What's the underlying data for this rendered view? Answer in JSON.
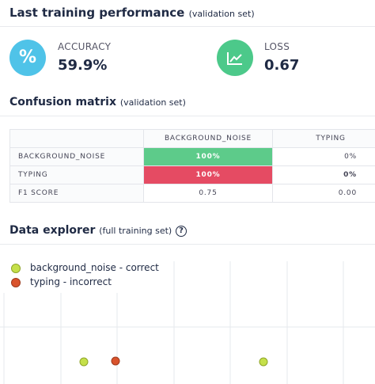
{
  "header": {
    "title": "Last training performance",
    "subtitle": "(validation set)"
  },
  "metrics": [
    {
      "icon": "%",
      "label": "ACCURACY",
      "value": "59.9%"
    },
    {
      "label": "LOSS",
      "value": "0.67"
    }
  ],
  "confusion_matrix": {
    "title": "Confusion matrix",
    "subtitle": "(validation set)",
    "columns": [
      "BACKGROUND_NOISE",
      "TYPING"
    ],
    "rows": [
      [
        "BACKGROUND_NOISE",
        "100%",
        "0%"
      ],
      [
        "TYPING",
        "100%",
        "0%"
      ],
      [
        "F1 SCORE",
        "0.75",
        "0.00"
      ]
    ]
  },
  "data_explorer": {
    "title": "Data explorer",
    "subtitle": "(full training set)",
    "help_icon": "?",
    "legend": [
      "background_noise - correct",
      "typing - incorrect"
    ]
  }
}
